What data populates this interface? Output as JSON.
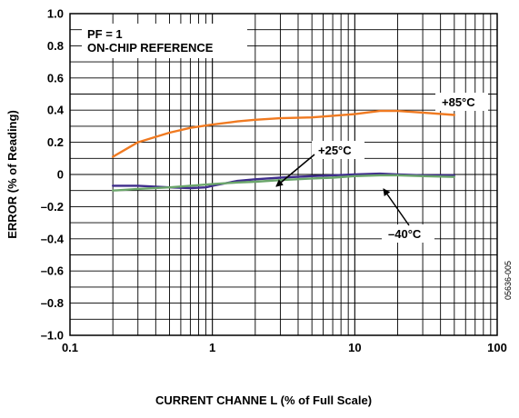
{
  "chart_data": {
    "type": "line",
    "x_scale": "log",
    "xlim": [
      0.1,
      100
    ],
    "ylim": [
      -1.0,
      1.0
    ],
    "xlabel": "CURRENT CHANNE L (% of Full Scale)",
    "ylabel": "ERROR (% of Reading)",
    "x_ticks": [
      {
        "value": 0.1,
        "label": "0.1"
      },
      {
        "value": 1,
        "label": "1"
      },
      {
        "value": 10,
        "label": "10"
      },
      {
        "value": 100,
        "label": "100"
      }
    ],
    "y_ticks": [
      {
        "value": 1.0,
        "label": "1.0"
      },
      {
        "value": 0.8,
        "label": "0.8"
      },
      {
        "value": 0.6,
        "label": "0.6"
      },
      {
        "value": 0.4,
        "label": "0.4"
      },
      {
        "value": 0.2,
        "label": "0.2"
      },
      {
        "value": 0,
        "label": "0"
      },
      {
        "value": -0.2,
        "label": "–0.2"
      },
      {
        "value": -0.4,
        "label": "–0.4"
      },
      {
        "value": -0.6,
        "label": "–0.6"
      },
      {
        "value": -0.8,
        "label": "–0.8"
      },
      {
        "value": -1.0,
        "label": "–1.0"
      }
    ],
    "grid": "log-minor-x, y-every-0.1",
    "series": [
      {
        "name": "+85°C",
        "color": "#F07A21",
        "x": [
          0.2,
          0.3,
          0.5,
          0.7,
          1,
          1.5,
          2,
          3,
          5,
          7,
          10,
          15,
          20,
          30,
          50
        ],
        "y": [
          0.11,
          0.2,
          0.26,
          0.29,
          0.31,
          0.33,
          0.34,
          0.35,
          0.355,
          0.365,
          0.375,
          0.395,
          0.395,
          0.385,
          0.37
        ]
      },
      {
        "name": "+25°C",
        "color": "#3F2D8C",
        "x": [
          0.2,
          0.3,
          0.5,
          0.7,
          0.9,
          1,
          1.5,
          2,
          3,
          5,
          7,
          10,
          15,
          20,
          30,
          50
        ],
        "y": [
          -0.07,
          -0.07,
          -0.08,
          -0.085,
          -0.08,
          -0.07,
          -0.04,
          -0.03,
          -0.02,
          -0.01,
          -0.005,
          0.0,
          0.005,
          0.0,
          -0.005,
          -0.005
        ]
      },
      {
        "name": "–40°C",
        "color": "#6BA66B",
        "x": [
          0.2,
          0.3,
          0.5,
          0.7,
          1,
          1.5,
          2,
          3,
          5,
          7,
          10,
          15,
          20,
          30,
          50
        ],
        "y": [
          -0.1,
          -0.09,
          -0.08,
          -0.07,
          -0.06,
          -0.05,
          -0.045,
          -0.035,
          -0.025,
          -0.02,
          -0.01,
          -0.005,
          -0.005,
          -0.01,
          -0.015
        ]
      }
    ],
    "annotations": {
      "condition_line1": "PF = 1",
      "condition_line2": "ON-CHIP REFERENCE",
      "label_85": "+85°C",
      "label_25": "+25°C",
      "label_m40": "–40°C",
      "figure_code": "05636-005"
    }
  }
}
